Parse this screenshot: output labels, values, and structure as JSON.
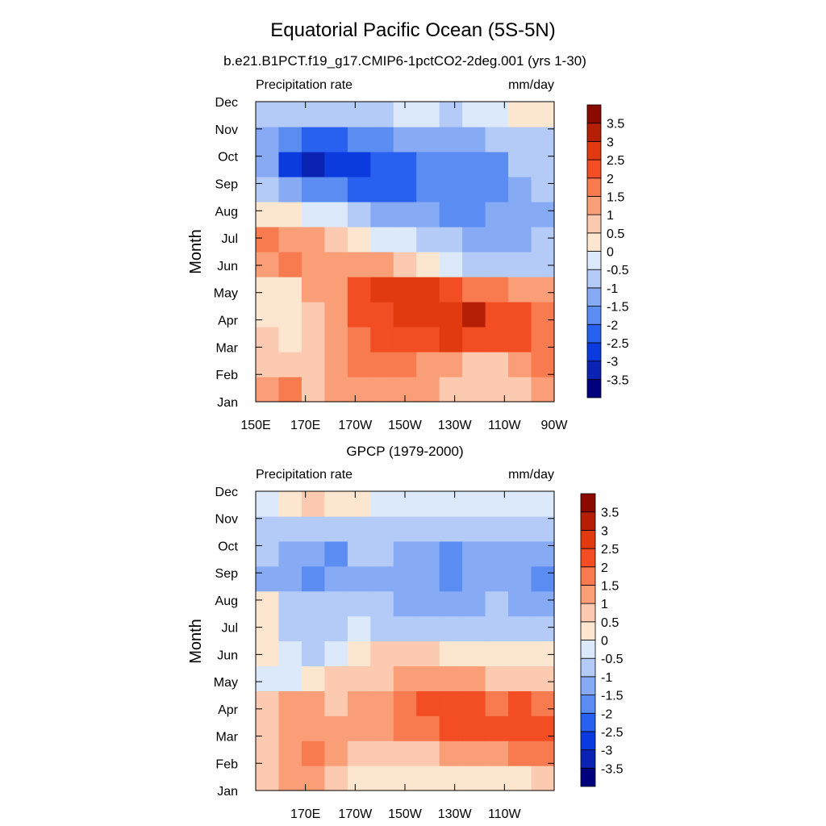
{
  "figure": {
    "title": "Equatorial Pacific Ocean (5S-5N)"
  },
  "colorbar": {
    "levels": [
      -3.5,
      -3,
      -2.5,
      -2,
      -1.5,
      -1,
      -0.5,
      0,
      0.5,
      1,
      1.5,
      2,
      2.5,
      3,
      3.5
    ],
    "labels": [
      "-3.5",
      "-3",
      "-2.5",
      "-2",
      "-1.5",
      "-1",
      "-0.5",
      "0",
      "0.5",
      "1",
      "1.5",
      "2",
      "2.5",
      "3",
      "3.5"
    ],
    "colors": [
      "#00007f",
      "#0b23b3",
      "#0b3bdf",
      "#2860f0",
      "#5a8cf2",
      "#87aaf5",
      "#b4cbf8",
      "#dbe9fb",
      "#fde6d0",
      "#fccab0",
      "#fa9e78",
      "#f87a4f",
      "#f24d23",
      "#e03a0e",
      "#b51f06",
      "#8a0a00"
    ]
  },
  "chart_data": [
    {
      "type": "heatmap",
      "title": "b.e21.B1PCT.f19_g17.CMIP6-1pctCO2-2deg.001 (yrs 1-30)",
      "left_label": "Precipitation rate",
      "right_label": "mm/day",
      "xlabel": "",
      "ylabel": "Month",
      "x": [
        150,
        160,
        170,
        180,
        190,
        200,
        210,
        220,
        230,
        240,
        250,
        260,
        270
      ],
      "xticklabels": [
        "150E",
        "170E",
        "170W",
        "150W",
        "130W",
        "110W",
        "90W"
      ],
      "xtick_values": [
        150,
        170,
        190,
        210,
        230,
        250,
        270
      ],
      "y": [
        "Jan",
        "Feb",
        "Mar",
        "Apr",
        "May",
        "Jun",
        "Jul",
        "Aug",
        "Sep",
        "Oct",
        "Nov",
        "Dec"
      ],
      "z": [
        [
          1.2,
          1.5,
          0.8,
          1.0,
          1.2,
          1.3,
          1.3,
          1.0,
          0.8,
          0.5,
          0.5,
          0.8,
          1.2
        ],
        [
          0.8,
          0.6,
          0.6,
          1.2,
          1.6,
          1.5,
          1.5,
          1.3,
          1.2,
          0.9,
          0.9,
          1.3,
          1.6
        ],
        [
          0.6,
          0.3,
          0.5,
          1.2,
          1.8,
          2.1,
          2.2,
          2.4,
          2.5,
          2.3,
          2.3,
          2.0,
          1.9
        ],
        [
          0.3,
          0.3,
          0.7,
          1.3,
          2.2,
          2.3,
          2.5,
          2.5,
          2.7,
          3.0,
          2.4,
          2.0,
          1.7
        ],
        [
          0.0,
          0.4,
          1.0,
          1.3,
          2.3,
          2.8,
          2.7,
          2.5,
          2.2,
          1.9,
          1.6,
          1.2,
          1.0
        ],
        [
          1.4,
          1.8,
          1.4,
          1.2,
          1.2,
          1.0,
          0.5,
          0.0,
          -0.3,
          -0.6,
          -0.8,
          -0.8,
          -0.8
        ],
        [
          1.6,
          1.4,
          1.2,
          0.6,
          0.3,
          -0.1,
          -0.5,
          -0.8,
          -1.0,
          -1.1,
          -1.2,
          -1.1,
          -1.0
        ],
        [
          0.2,
          0.0,
          -0.2,
          -0.5,
          -0.8,
          -1.1,
          -1.3,
          -1.5,
          -1.6,
          -1.6,
          -1.5,
          -1.3,
          -1.2
        ],
        [
          -0.6,
          -1.5,
          -1.8,
          -2.0,
          -2.2,
          -2.2,
          -2.1,
          -2.0,
          -1.9,
          -1.8,
          -1.7,
          -1.3,
          -1.0
        ],
        [
          -1.5,
          -2.6,
          -3.2,
          -2.8,
          -2.6,
          -2.4,
          -2.1,
          -2.0,
          -1.8,
          -1.6,
          -1.6,
          -1.0,
          -0.8
        ],
        [
          -1.3,
          -2.0,
          -2.2,
          -2.2,
          -2.0,
          -1.6,
          -1.4,
          -1.3,
          -1.2,
          -1.1,
          -1.0,
          -0.8,
          -0.6
        ],
        [
          -0.6,
          -0.6,
          -0.8,
          -1.0,
          -0.8,
          -0.6,
          -0.4,
          -0.5,
          -0.6,
          -0.5,
          -0.2,
          0.2,
          0.3
        ]
      ]
    },
    {
      "type": "heatmap",
      "title": "GPCP (1979-2000)",
      "left_label": "Precipitation rate",
      "right_label": "mm/day",
      "xlabel": "",
      "ylabel": "Month",
      "x": [
        150,
        160,
        170,
        180,
        190,
        200,
        210,
        220,
        230,
        240,
        250,
        260,
        270
      ],
      "xticklabels": [
        "170E",
        "170W",
        "150W",
        "130W",
        "110W"
      ],
      "xtick_values": [
        170,
        190,
        210,
        230,
        250
      ],
      "y": [
        "Jan",
        "Feb",
        "Mar",
        "Apr",
        "May",
        "Jun",
        "Jul",
        "Aug",
        "Sep",
        "Oct",
        "Nov",
        "Dec"
      ],
      "z": [
        [
          0.7,
          1.2,
          1.3,
          0.7,
          0.4,
          0.3,
          0.2,
          0.1,
          0.1,
          0.0,
          0.2,
          0.4,
          0.5
        ],
        [
          0.6,
          1.3,
          1.5,
          1.0,
          0.6,
          0.6,
          0.7,
          0.9,
          1.1,
          1.2,
          1.3,
          1.6,
          1.8
        ],
        [
          0.8,
          1.2,
          1.2,
          1.1,
          1.0,
          1.2,
          1.5,
          1.8,
          2.0,
          2.1,
          2.0,
          2.2,
          2.0
        ],
        [
          0.5,
          1.0,
          1.0,
          0.9,
          1.0,
          1.4,
          1.6,
          2.0,
          2.2,
          2.3,
          1.9,
          2.1,
          1.7
        ],
        [
          -0.1,
          -0.2,
          0.2,
          0.5,
          0.8,
          0.9,
          1.1,
          1.2,
          1.1,
          1.0,
          0.9,
          0.8,
          0.7
        ],
        [
          0.3,
          -0.4,
          -0.7,
          -0.4,
          0.2,
          0.5,
          0.6,
          0.5,
          0.4,
          0.3,
          0.2,
          0.1,
          0.0
        ],
        [
          0.3,
          -0.6,
          -0.8,
          -0.7,
          -0.5,
          -0.6,
          -0.7,
          -0.8,
          -0.9,
          -0.8,
          -0.7,
          -0.9,
          -1.0
        ],
        [
          0.3,
          -0.8,
          -1.0,
          -0.9,
          -0.9,
          -0.9,
          -1.1,
          -1.3,
          -1.4,
          -1.2,
          -1.0,
          -1.4,
          -1.5
        ],
        [
          -1.5,
          -1.3,
          -1.8,
          -1.4,
          -1.2,
          -1.1,
          -1.4,
          -1.5,
          -1.6,
          -1.5,
          -1.1,
          -1.4,
          -1.6
        ],
        [
          -0.8,
          -1.1,
          -1.3,
          -1.6,
          -1.0,
          -1.0,
          -1.4,
          -1.5,
          -1.6,
          -1.4,
          -1.1,
          -1.2,
          -1.3
        ],
        [
          -0.8,
          -0.9,
          -0.9,
          -0.8,
          -0.7,
          -0.7,
          -0.8,
          -0.8,
          -0.9,
          -0.8,
          -0.7,
          -0.7,
          -0.7
        ],
        [
          -0.2,
          0.3,
          0.8,
          0.4,
          0.0,
          -0.3,
          -0.4,
          -0.4,
          -0.3,
          -0.4,
          -0.5,
          -0.4,
          -0.4
        ]
      ]
    }
  ]
}
